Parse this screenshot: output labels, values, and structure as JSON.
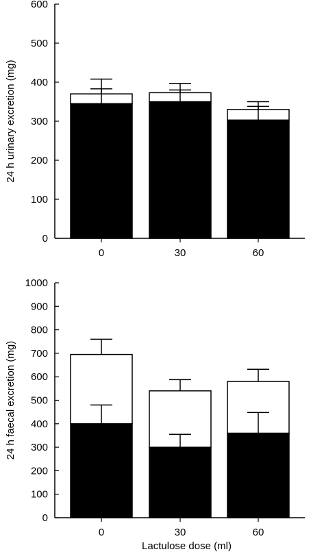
{
  "chart_data": [
    {
      "type": "bar",
      "stacked": true,
      "categories": [
        "0",
        "30",
        "60"
      ],
      "xlabel": "",
      "ylabel": "24 h urinary excretion (mg)",
      "ylim": [
        0,
        600
      ],
      "yticks": [
        "0",
        "100",
        "200",
        "300",
        "400",
        "500",
        "600"
      ],
      "grid": false,
      "series": [
        {
          "values": [
            345,
            350,
            303
          ],
          "errors": [
            38,
            30,
            35
          ],
          "color": "#000000"
        },
        {
          "values": [
            25,
            23,
            27
          ],
          "errors": [
            38,
            24,
            20
          ],
          "color": "#ffffff"
        }
      ]
    },
    {
      "type": "bar",
      "stacked": true,
      "categories": [
        "0",
        "30",
        "60"
      ],
      "xlabel": "Lactulose dose (ml)",
      "ylabel": "24 h faecal excretion (mg)",
      "ylim": [
        0,
        1000
      ],
      "yticks": [
        "0",
        "100",
        "200",
        "300",
        "400",
        "500",
        "600",
        "700",
        "800",
        "900",
        "1000"
      ],
      "grid": false,
      "series": [
        {
          "values": [
            400,
            300,
            360
          ],
          "errors": [
            80,
            55,
            88
          ],
          "color": "#000000"
        },
        {
          "values": [
            295,
            240,
            220
          ],
          "errors": [
            65,
            48,
            52
          ],
          "color": "#ffffff"
        }
      ]
    }
  ]
}
